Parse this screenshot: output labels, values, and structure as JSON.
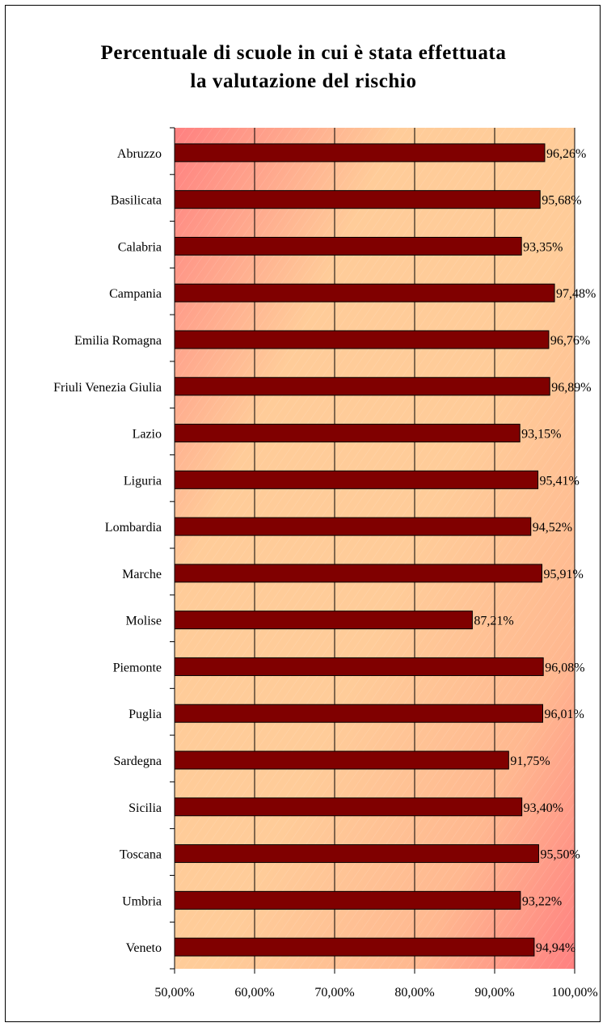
{
  "chart_data": {
    "type": "bar",
    "orientation": "horizontal",
    "title": "Percentuale di scuole in cui è stata effettuata la valutazione del rischio",
    "title_lines": [
      "Percentuale di scuole in cui è stata effettuata",
      "la valutazione del rischio"
    ],
    "categories": [
      "Abruzzo",
      "Basilicata",
      "Calabria",
      "Campania",
      "Emilia Romagna",
      "Friuli Venezia Giulia",
      "Lazio",
      "Liguria",
      "Lombardia",
      "Marche",
      "Molise",
      "Piemonte",
      "Puglia",
      "Sardegna",
      "Sicilia",
      "Toscana",
      "Umbria",
      "Veneto"
    ],
    "values": [
      96.26,
      95.68,
      93.35,
      97.48,
      96.76,
      96.89,
      93.15,
      95.41,
      94.52,
      95.91,
      87.21,
      96.08,
      96.01,
      91.75,
      93.4,
      95.5,
      93.22,
      94.94
    ],
    "data_labels": [
      "96,26%",
      "95,68%",
      "93,35%",
      "97,48%",
      "96,76%",
      "96,89%",
      "93,15%",
      "95,41%",
      "94,52%",
      "95,91%",
      "87,21%",
      "96,08%",
      "96,01%",
      "91,75%",
      "93,40%",
      "95,50%",
      "93,22%",
      "94,94%"
    ],
    "x_ticks": [
      50,
      60,
      70,
      80,
      90,
      100
    ],
    "x_tick_labels": [
      "50,00%",
      "60,00%",
      "70,00%",
      "80,00%",
      "90,00%",
      "100,00%"
    ],
    "xlim": [
      50,
      100
    ],
    "xlabel": "",
    "ylabel": "",
    "grid": "vertical",
    "legend": "none",
    "colors": {
      "bar": "#800000",
      "bar_border": "#000000",
      "plot_bg_light": "#ffcc99",
      "plot_bg_dark": "#ff8080",
      "grid": "#000000"
    }
  }
}
